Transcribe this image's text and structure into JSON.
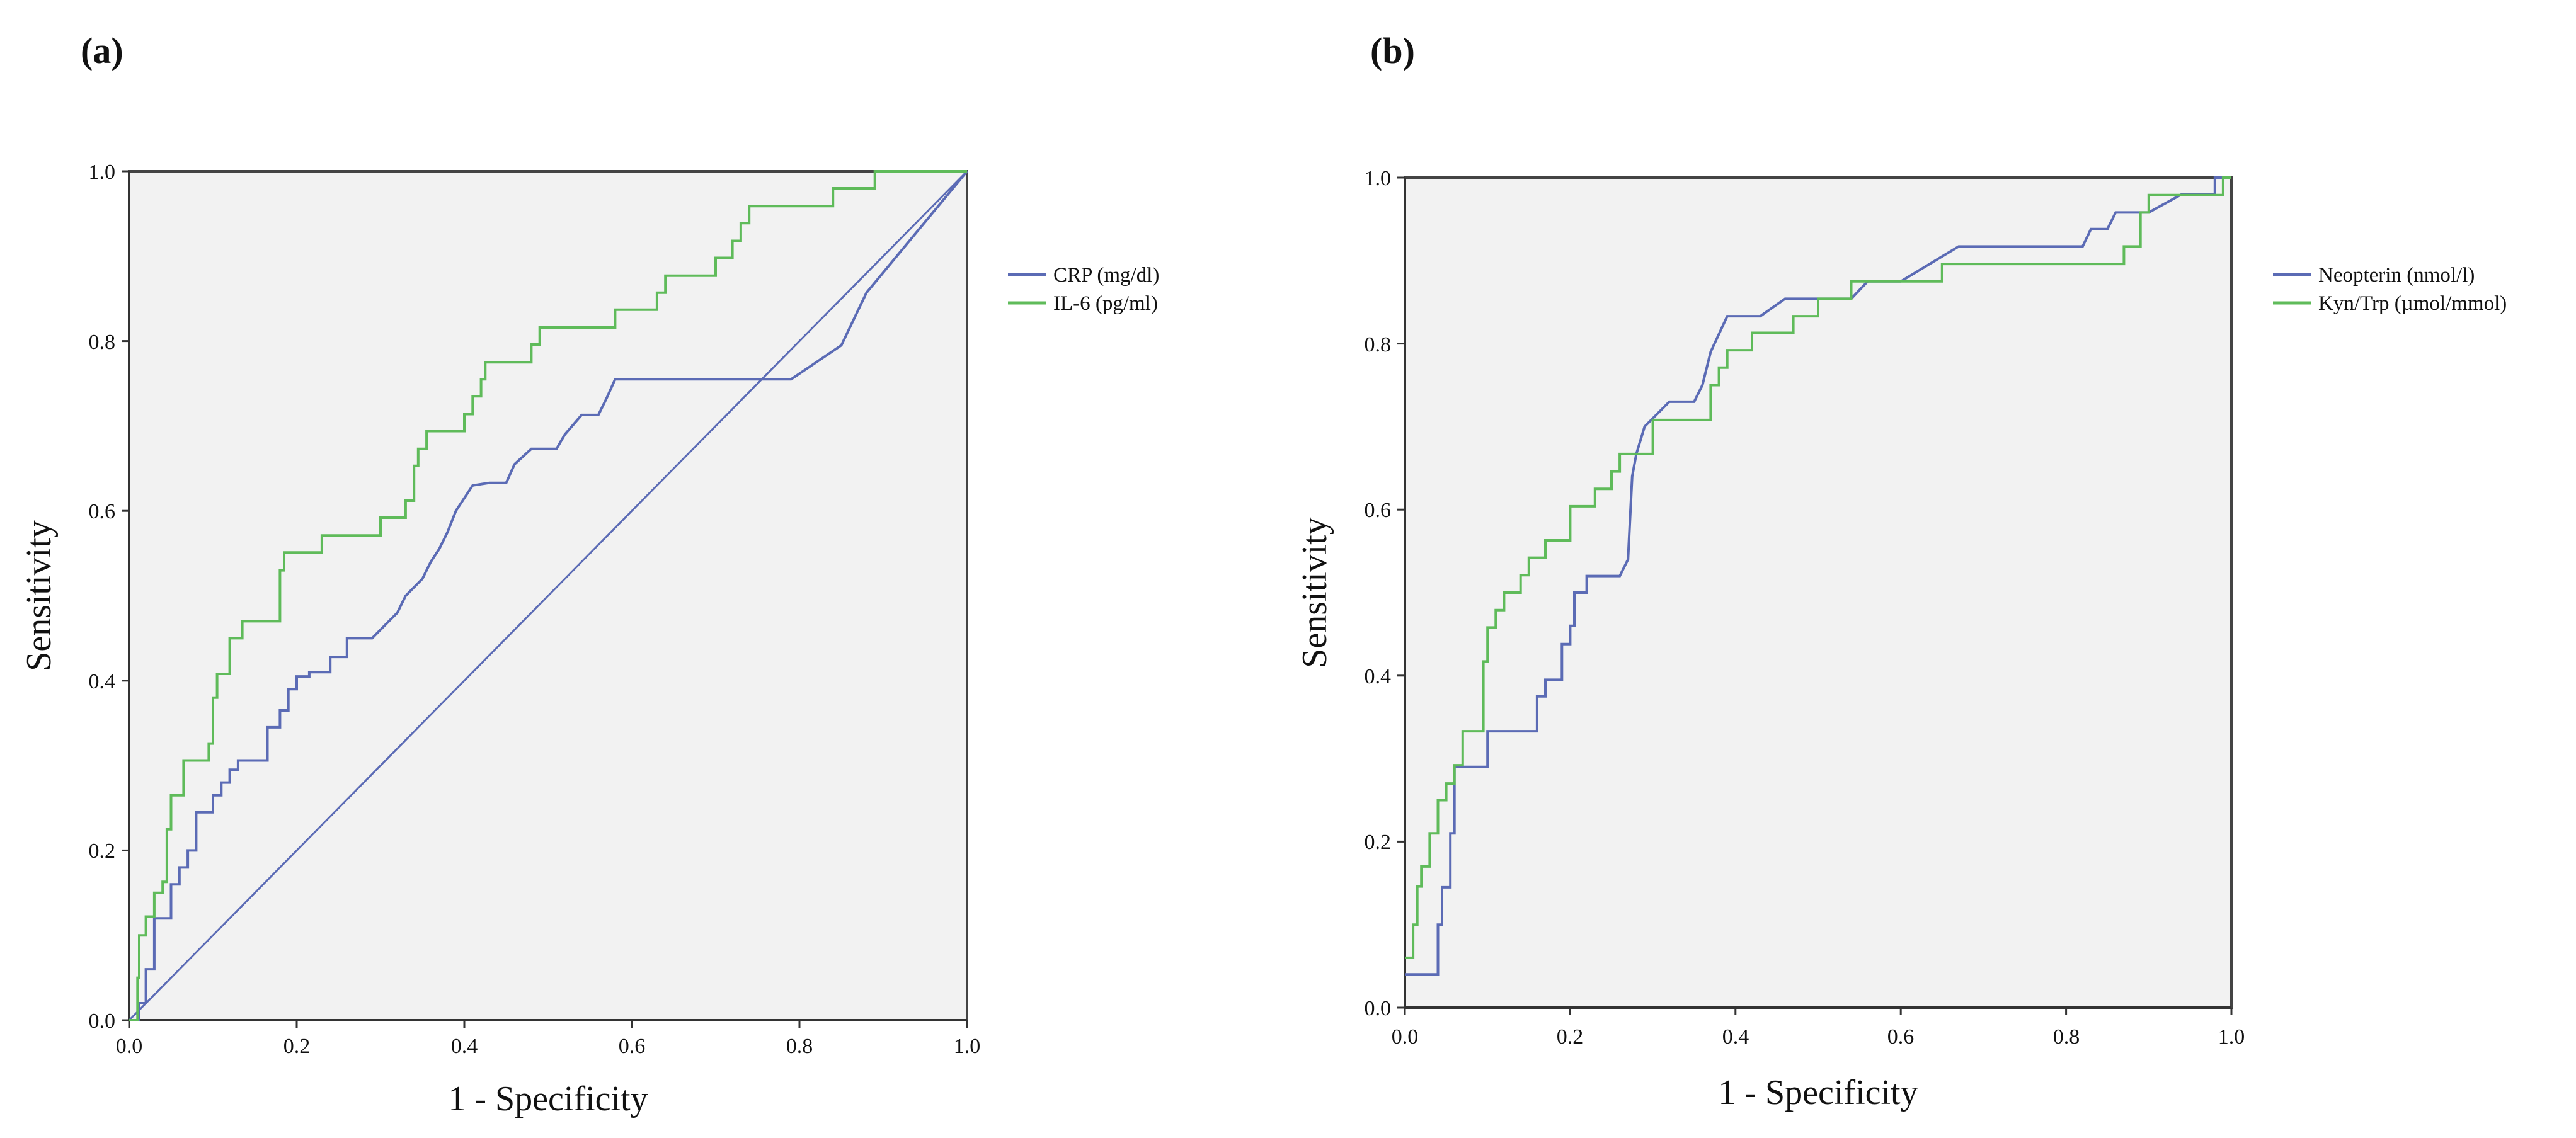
{
  "chart_data": [
    {
      "type": "line",
      "panel_label": "(a)",
      "xlabel": "1 - Specificity",
      "ylabel": "Sensitivity",
      "xlim": [
        0,
        1
      ],
      "ylim": [
        0,
        1
      ],
      "x_ticks": [
        "0.0",
        "0.2",
        "0.4",
        "0.6",
        "0.8",
        "1.0"
      ],
      "y_ticks": [
        "0.0",
        "0.2",
        "0.4",
        "0.6",
        "0.8",
        "1.0"
      ],
      "legend_position": "right",
      "background": "#f2f2f2",
      "series": [
        {
          "name": "CRP (mg/dl)",
          "color": "#5b6bb5",
          "points": [
            [
              0,
              0
            ],
            [
              0.012,
              0
            ],
            [
              0.012,
              0.02
            ],
            [
              0.02,
              0.02
            ],
            [
              0.02,
              0.06
            ],
            [
              0.03,
              0.06
            ],
            [
              0.03,
              0.12
            ],
            [
              0.05,
              0.12
            ],
            [
              0.05,
              0.16
            ],
            [
              0.06,
              0.16
            ],
            [
              0.06,
              0.18
            ],
            [
              0.07,
              0.18
            ],
            [
              0.07,
              0.2
            ],
            [
              0.08,
              0.2
            ],
            [
              0.08,
              0.245
            ],
            [
              0.1,
              0.245
            ],
            [
              0.1,
              0.265
            ],
            [
              0.11,
              0.265
            ],
            [
              0.11,
              0.28
            ],
            [
              0.12,
              0.28
            ],
            [
              0.12,
              0.295
            ],
            [
              0.13,
              0.295
            ],
            [
              0.13,
              0.306
            ],
            [
              0.16,
              0.306
            ],
            [
              0.16,
              0.306
            ],
            [
              0.165,
              0.306
            ],
            [
              0.165,
              0.345
            ],
            [
              0.18,
              0.345
            ],
            [
              0.18,
              0.365
            ],
            [
              0.19,
              0.365
            ],
            [
              0.19,
              0.39
            ],
            [
              0.2,
              0.39
            ],
            [
              0.2,
              0.405
            ],
            [
              0.215,
              0.405
            ],
            [
              0.215,
              0.41
            ],
            [
              0.24,
              0.41
            ],
            [
              0.24,
              0.428
            ],
            [
              0.26,
              0.428
            ],
            [
              0.26,
              0.45
            ],
            [
              0.29,
              0.45
            ],
            [
              0.3,
              0.46
            ],
            [
              0.31,
              0.47
            ],
            [
              0.32,
              0.48
            ],
            [
              0.33,
              0.5
            ],
            [
              0.34,
              0.51
            ],
            [
              0.35,
              0.52
            ],
            [
              0.36,
              0.54
            ],
            [
              0.37,
              0.555
            ],
            [
              0.38,
              0.575
            ],
            [
              0.39,
              0.6
            ],
            [
              0.41,
              0.63
            ],
            [
              0.43,
              0.633
            ],
            [
              0.45,
              0.633
            ],
            [
              0.46,
              0.655
            ],
            [
              0.48,
              0.673
            ],
            [
              0.51,
              0.673
            ],
            [
              0.52,
              0.69
            ],
            [
              0.54,
              0.713
            ],
            [
              0.56,
              0.713
            ],
            [
              0.57,
              0.733
            ],
            [
              0.58,
              0.755
            ],
            [
              0.6,
              0.755
            ],
            [
              0.79,
              0.755
            ],
            [
              0.85,
              0.795
            ],
            [
              0.88,
              0.857
            ],
            [
              1.0,
              1.0
            ]
          ]
        },
        {
          "name": "IL-6 (pg/ml)",
          "color": "#5fbb5a",
          "points": [
            [
              0,
              0
            ],
            [
              0.01,
              0
            ],
            [
              0.01,
              0.05
            ],
            [
              0.012,
              0.05
            ],
            [
              0.012,
              0.1
            ],
            [
              0.02,
              0.1
            ],
            [
              0.02,
              0.122
            ],
            [
              0.03,
              0.122
            ],
            [
              0.03,
              0.15
            ],
            [
              0.04,
              0.15
            ],
            [
              0.04,
              0.163
            ],
            [
              0.045,
              0.163
            ],
            [
              0.045,
              0.225
            ],
            [
              0.05,
              0.225
            ],
            [
              0.05,
              0.265
            ],
            [
              0.06,
              0.265
            ],
            [
              0.06,
              0.265
            ],
            [
              0.065,
              0.265
            ],
            [
              0.065,
              0.306
            ],
            [
              0.095,
              0.306
            ],
            [
              0.095,
              0.326
            ],
            [
              0.1,
              0.326
            ],
            [
              0.1,
              0.38
            ],
            [
              0.105,
              0.38
            ],
            [
              0.105,
              0.408
            ],
            [
              0.11,
              0.408
            ],
            [
              0.11,
              0.408
            ],
            [
              0.12,
              0.408
            ],
            [
              0.12,
              0.45
            ],
            [
              0.13,
              0.45
            ],
            [
              0.13,
              0.45
            ],
            [
              0.135,
              0.45
            ],
            [
              0.135,
              0.47
            ],
            [
              0.18,
              0.47
            ],
            [
              0.18,
              0.53
            ],
            [
              0.185,
              0.53
            ],
            [
              0.185,
              0.551
            ],
            [
              0.23,
              0.551
            ],
            [
              0.23,
              0.571
            ],
            [
              0.3,
              0.571
            ],
            [
              0.3,
              0.592
            ],
            [
              0.33,
              0.592
            ],
            [
              0.33,
              0.612
            ],
            [
              0.34,
              0.612
            ],
            [
              0.34,
              0.653
            ],
            [
              0.345,
              0.653
            ],
            [
              0.345,
              0.673
            ],
            [
              0.355,
              0.673
            ],
            [
              0.355,
              0.694
            ],
            [
              0.4,
              0.694
            ],
            [
              0.4,
              0.714
            ],
            [
              0.41,
              0.714
            ],
            [
              0.41,
              0.735
            ],
            [
              0.42,
              0.735
            ],
            [
              0.42,
              0.755
            ],
            [
              0.425,
              0.755
            ],
            [
              0.425,
              0.775
            ],
            [
              0.48,
              0.775
            ],
            [
              0.48,
              0.796
            ],
            [
              0.49,
              0.796
            ],
            [
              0.49,
              0.816
            ],
            [
              0.58,
              0.816
            ],
            [
              0.58,
              0.837
            ],
            [
              0.63,
              0.837
            ],
            [
              0.63,
              0.857
            ],
            [
              0.64,
              0.857
            ],
            [
              0.64,
              0.877
            ],
            [
              0.7,
              0.877
            ],
            [
              0.7,
              0.898
            ],
            [
              0.72,
              0.898
            ],
            [
              0.72,
              0.918
            ],
            [
              0.73,
              0.918
            ],
            [
              0.73,
              0.939
            ],
            [
              0.74,
              0.939
            ],
            [
              0.74,
              0.959
            ],
            [
              0.84,
              0.959
            ],
            [
              0.84,
              0.98
            ],
            [
              0.89,
              0.98
            ],
            [
              0.89,
              1.0
            ],
            [
              1.0,
              1.0
            ]
          ]
        }
      ]
    },
    {
      "type": "line",
      "panel_label": "(b)",
      "xlabel": "1 - Specificity",
      "ylabel": "Sensitivity",
      "xlim": [
        0,
        1
      ],
      "ylim": [
        0,
        1
      ],
      "x_ticks": [
        "0.0",
        "0.2",
        "0.4",
        "0.6",
        "0.8",
        "1.0"
      ],
      "y_ticks": [
        "0.0",
        "0.2",
        "0.4",
        "0.6",
        "0.8",
        "1.0"
      ],
      "legend_position": "right",
      "background": "#f2f2f2",
      "series": [
        {
          "name": "Neopterin (nmol/l)",
          "color": "#5b6bb5",
          "points": [
            [
              0,
              0.04
            ],
            [
              0.04,
              0.04
            ],
            [
              0.04,
              0.1
            ],
            [
              0.045,
              0.1
            ],
            [
              0.045,
              0.145
            ],
            [
              0.055,
              0.145
            ],
            [
              0.055,
              0.21
            ],
            [
              0.06,
              0.21
            ],
            [
              0.06,
              0.29
            ],
            [
              0.1,
              0.29
            ],
            [
              0.1,
              0.333
            ],
            [
              0.16,
              0.333
            ],
            [
              0.16,
              0.375
            ],
            [
              0.17,
              0.375
            ],
            [
              0.17,
              0.395
            ],
            [
              0.19,
              0.395
            ],
            [
              0.19,
              0.438
            ],
            [
              0.2,
              0.438
            ],
            [
              0.2,
              0.46
            ],
            [
              0.205,
              0.46
            ],
            [
              0.205,
              0.5
            ],
            [
              0.22,
              0.5
            ],
            [
              0.22,
              0.52
            ],
            [
              0.26,
              0.52
            ],
            [
              0.27,
              0.54
            ],
            [
              0.275,
              0.64
            ],
            [
              0.28,
              0.667
            ],
            [
              0.29,
              0.7
            ],
            [
              0.32,
              0.73
            ],
            [
              0.35,
              0.73
            ],
            [
              0.36,
              0.75
            ],
            [
              0.37,
              0.79
            ],
            [
              0.39,
              0.833
            ],
            [
              0.43,
              0.833
            ],
            [
              0.46,
              0.854
            ],
            [
              0.54,
              0.854
            ],
            [
              0.56,
              0.875
            ],
            [
              0.6,
              0.875
            ],
            [
              0.67,
              0.917
            ],
            [
              0.82,
              0.917
            ],
            [
              0.83,
              0.938
            ],
            [
              0.85,
              0.938
            ],
            [
              0.86,
              0.958
            ],
            [
              0.9,
              0.958
            ],
            [
              0.94,
              0.98
            ],
            [
              0.98,
              0.98
            ],
            [
              0.98,
              1.0
            ],
            [
              1.0,
              1.0
            ]
          ]
        },
        {
          "name": "Kyn/Trp (µmol/mmol)",
          "color": "#5fbb5a",
          "points": [
            [
              0,
              0.06
            ],
            [
              0.01,
              0.06
            ],
            [
              0.01,
              0.1
            ],
            [
              0.015,
              0.1
            ],
            [
              0.015,
              0.146
            ],
            [
              0.02,
              0.146
            ],
            [
              0.02,
              0.17
            ],
            [
              0.03,
              0.17
            ],
            [
              0.03,
              0.21
            ],
            [
              0.04,
              0.21
            ],
            [
              0.04,
              0.25
            ],
            [
              0.05,
              0.25
            ],
            [
              0.05,
              0.27
            ],
            [
              0.06,
              0.27
            ],
            [
              0.06,
              0.292
            ],
            [
              0.07,
              0.292
            ],
            [
              0.07,
              0.333
            ],
            [
              0.095,
              0.333
            ],
            [
              0.095,
              0.417
            ],
            [
              0.1,
              0.417
            ],
            [
              0.1,
              0.458
            ],
            [
              0.11,
              0.458
            ],
            [
              0.11,
              0.479
            ],
            [
              0.12,
              0.479
            ],
            [
              0.12,
              0.5
            ],
            [
              0.14,
              0.5
            ],
            [
              0.14,
              0.521
            ],
            [
              0.15,
              0.521
            ],
            [
              0.15,
              0.542
            ],
            [
              0.17,
              0.542
            ],
            [
              0.17,
              0.563
            ],
            [
              0.2,
              0.563
            ],
            [
              0.2,
              0.604
            ],
            [
              0.23,
              0.604
            ],
            [
              0.23,
              0.625
            ],
            [
              0.25,
              0.625
            ],
            [
              0.25,
              0.646
            ],
            [
              0.26,
              0.646
            ],
            [
              0.26,
              0.667
            ],
            [
              0.3,
              0.667
            ],
            [
              0.3,
              0.708
            ],
            [
              0.37,
              0.708
            ],
            [
              0.37,
              0.75
            ],
            [
              0.38,
              0.75
            ],
            [
              0.38,
              0.771
            ],
            [
              0.39,
              0.771
            ],
            [
              0.39,
              0.792
            ],
            [
              0.42,
              0.792
            ],
            [
              0.42,
              0.813
            ],
            [
              0.47,
              0.813
            ],
            [
              0.47,
              0.833
            ],
            [
              0.5,
              0.833
            ],
            [
              0.5,
              0.854
            ],
            [
              0.54,
              0.854
            ],
            [
              0.54,
              0.875
            ],
            [
              0.65,
              0.875
            ],
            [
              0.65,
              0.896
            ],
            [
              0.87,
              0.896
            ],
            [
              0.87,
              0.917
            ],
            [
              0.89,
              0.917
            ],
            [
              0.89,
              0.958
            ],
            [
              0.9,
              0.958
            ],
            [
              0.9,
              0.979
            ],
            [
              0.99,
              0.979
            ],
            [
              0.99,
              1.0
            ],
            [
              1.0,
              1.0
            ]
          ]
        }
      ]
    }
  ]
}
